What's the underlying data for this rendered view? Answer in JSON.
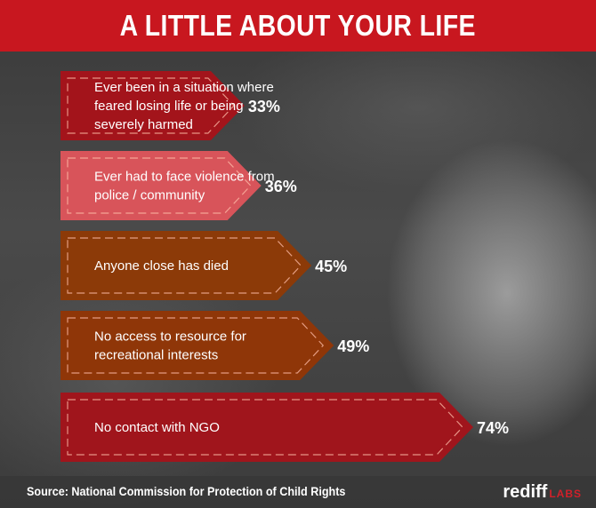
{
  "title": "A LITTLE ABOUT YOUR LIFE",
  "source": "Source: National Commission for Protection of Child Rights",
  "brand": {
    "name": "rediff",
    "suffix": "LABS"
  },
  "chart_data": {
    "type": "bar",
    "orientation": "horizontal",
    "categories": [
      [
        "Ever been in a situation where",
        "feared losing life or being",
        "severely harmed"
      ],
      [
        "Ever had to face violence from",
        "police / community"
      ],
      [
        "Anyone close has died"
      ],
      [
        "No access to resource for",
        "recreational interests"
      ],
      [
        "No contact with NGO"
      ]
    ],
    "values": [
      33,
      36,
      45,
      49,
      74
    ],
    "value_labels": [
      "33%",
      "36%",
      "45%",
      "49%",
      "74%"
    ],
    "colors": [
      "#a3141b",
      "#d8545a",
      "#8c3a08",
      "#8f3608",
      "#a0151c"
    ],
    "xlim": [
      0,
      100
    ],
    "grid": false,
    "legend": "none"
  }
}
